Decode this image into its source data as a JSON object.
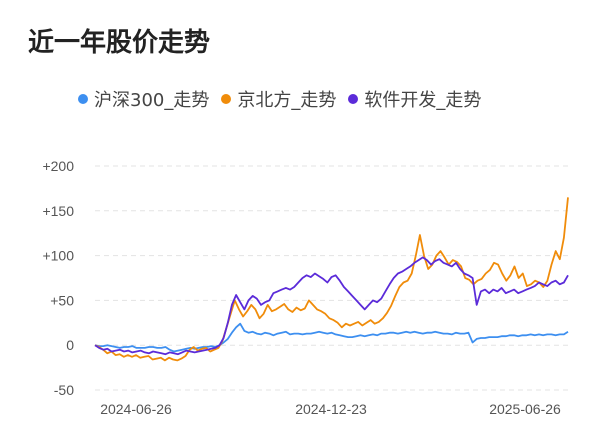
{
  "title": "近一年股价走势",
  "chart_data": {
    "type": "line",
    "title": "近一年股价走势",
    "xlabel": "",
    "ylabel": "",
    "ylim": [
      -50,
      200
    ],
    "yticks": [
      -50,
      0,
      50,
      100,
      150,
      200
    ],
    "ytick_labels": [
      "-50",
      "0",
      "+50",
      "+100",
      "+150",
      "+200"
    ],
    "xtick_labels": [
      "2024-06-26",
      "2024-12-23",
      "2025-06-26"
    ],
    "grid": "horizontal-dashed",
    "legend_position": "top",
    "series": [
      {
        "name": "沪深300_走势",
        "color": "#3d8ff0",
        "values": [
          0,
          -1,
          -1,
          0,
          -1,
          -2,
          -3,
          -2,
          -2,
          -1,
          -3,
          -3,
          -3,
          -2,
          -2,
          -3,
          -3,
          -2,
          -5,
          -7,
          -6,
          -5,
          -4,
          -3,
          -4,
          -3,
          -2,
          -2,
          -1,
          -2,
          0,
          3,
          7,
          14,
          20,
          24,
          16,
          14,
          15,
          13,
          12,
          14,
          13,
          11,
          13,
          14,
          15,
          12,
          13,
          13,
          12,
          13,
          13,
          14,
          15,
          14,
          13,
          14,
          12,
          11,
          10,
          9,
          9,
          10,
          11,
          10,
          11,
          12,
          11,
          13,
          13,
          14,
          14,
          13,
          14,
          15,
          14,
          15,
          14,
          13,
          14,
          14,
          15,
          14,
          13,
          13,
          12,
          14,
          13,
          13,
          14,
          3,
          7,
          8,
          8,
          9,
          9,
          9,
          10,
          10,
          11,
          11,
          10,
          11,
          11,
          12,
          11,
          12,
          11,
          12,
          12,
          11,
          12,
          12,
          15
        ]
      },
      {
        "name": "京北方_走势",
        "color": "#f08c0a",
        "values": [
          0,
          -2,
          -5,
          -9,
          -7,
          -11,
          -10,
          -13,
          -11,
          -13,
          -11,
          -14,
          -13,
          -12,
          -16,
          -15,
          -14,
          -17,
          -14,
          -16,
          -17,
          -15,
          -12,
          -5,
          -2,
          -6,
          -4,
          -3,
          -7,
          -5,
          -3,
          5,
          20,
          35,
          50,
          40,
          32,
          38,
          45,
          40,
          30,
          35,
          45,
          38,
          40,
          43,
          46,
          40,
          37,
          42,
          39,
          41,
          50,
          45,
          40,
          38,
          35,
          30,
          28,
          25,
          20,
          24,
          22,
          24,
          26,
          22,
          25,
          28,
          24,
          26,
          30,
          36,
          44,
          55,
          65,
          70,
          72,
          80,
          100,
          123,
          100,
          85,
          90,
          100,
          105,
          98,
          90,
          95,
          93,
          88,
          75,
          73,
          68,
          72,
          74,
          80,
          84,
          92,
          90,
          80,
          72,
          78,
          88,
          75,
          80,
          66,
          68,
          72,
          70,
          65,
          72,
          90,
          105,
          96,
          120,
          165
        ]
      },
      {
        "name": "软件开发_走势",
        "color": "#5b2bd9",
        "values": [
          0,
          -3,
          -5,
          -4,
          -7,
          -6,
          -5,
          -7,
          -6,
          -8,
          -7,
          -6,
          -8,
          -9,
          -7,
          -8,
          -9,
          -10,
          -8,
          -9,
          -10,
          -8,
          -6,
          -7,
          -8,
          -7,
          -6,
          -5,
          -4,
          -3,
          0,
          8,
          25,
          45,
          56,
          48,
          40,
          50,
          55,
          52,
          45,
          48,
          50,
          58,
          60,
          62,
          64,
          62,
          65,
          70,
          75,
          78,
          76,
          80,
          77,
          74,
          70,
          76,
          78,
          72,
          65,
          60,
          55,
          50,
          45,
          40,
          45,
          50,
          48,
          52,
          60,
          68,
          75,
          80,
          82,
          85,
          88,
          92,
          95,
          98,
          95,
          90,
          94,
          96,
          92,
          90,
          88,
          92,
          85,
          80,
          78,
          75,
          45,
          60,
          62,
          58,
          62,
          60,
          64,
          58,
          60,
          62,
          58,
          60,
          62,
          64,
          66,
          70,
          68,
          66,
          70,
          72,
          68,
          70,
          78
        ]
      }
    ]
  }
}
